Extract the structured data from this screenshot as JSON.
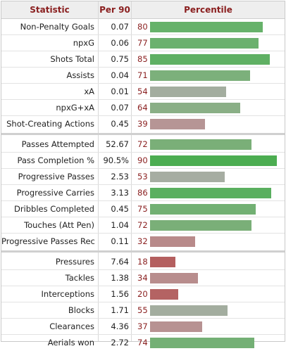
{
  "headers": {
    "statistic": "Statistic",
    "per90": "Per 90",
    "percentile": "Percentile"
  },
  "groups": [
    {
      "rows": [
        {
          "label": "Non-Penalty Goals",
          "per90": "0.07",
          "pct": 80,
          "color": "#66b26a"
        },
        {
          "label": "npxG",
          "per90": "0.06",
          "pct": 77,
          "color": "#6bb16e"
        },
        {
          "label": "Shots Total",
          "per90": "0.75",
          "pct": 85,
          "color": "#5fb063"
        },
        {
          "label": "Assists",
          "per90": "0.04",
          "pct": 71,
          "color": "#7cb07b"
        },
        {
          "label": "xA",
          "per90": "0.01",
          "pct": 54,
          "color": "#a3ad9f"
        },
        {
          "label": "npxG+xA",
          "per90": "0.07",
          "pct": 64,
          "color": "#8aaf86"
        },
        {
          "label": "Shot-Creating Actions",
          "per90": "0.45",
          "pct": 39,
          "color": "#b69595"
        }
      ]
    },
    {
      "rows": [
        {
          "label": "Passes Attempted",
          "per90": "52.67",
          "pct": 72,
          "color": "#7aaf78"
        },
        {
          "label": "Pass Completion %",
          "per90": "90.5%",
          "pct": 90,
          "color": "#4cad51"
        },
        {
          "label": "Progressive Passes",
          "per90": "2.53",
          "pct": 53,
          "color": "#a6ada2"
        },
        {
          "label": "Progressive Carries",
          "per90": "3.13",
          "pct": 86,
          "color": "#5aaf5f"
        },
        {
          "label": "Dribbles Completed",
          "per90": "0.45",
          "pct": 75,
          "color": "#72b073"
        },
        {
          "label": "Touches (Att Pen)",
          "per90": "1.04",
          "pct": 72,
          "color": "#7aaf78"
        },
        {
          "label": "Progressive Passes Rec",
          "per90": "0.11",
          "pct": 32,
          "color": "#b88a8a"
        }
      ]
    },
    {
      "rows": [
        {
          "label": "Pressures",
          "per90": "7.64",
          "pct": 18,
          "color": "#b45f5f"
        },
        {
          "label": "Tackles",
          "per90": "1.38",
          "pct": 34,
          "color": "#b88d8d"
        },
        {
          "label": "Interceptions",
          "per90": "1.56",
          "pct": 20,
          "color": "#b46363"
        },
        {
          "label": "Blocks",
          "per90": "1.71",
          "pct": 55,
          "color": "#a3ad9f"
        },
        {
          "label": "Clearances",
          "per90": "4.36",
          "pct": 37,
          "color": "#b79292"
        },
        {
          "label": "Aerials won",
          "per90": "2.72",
          "pct": 74,
          "color": "#74b075"
        }
      ]
    }
  ]
}
